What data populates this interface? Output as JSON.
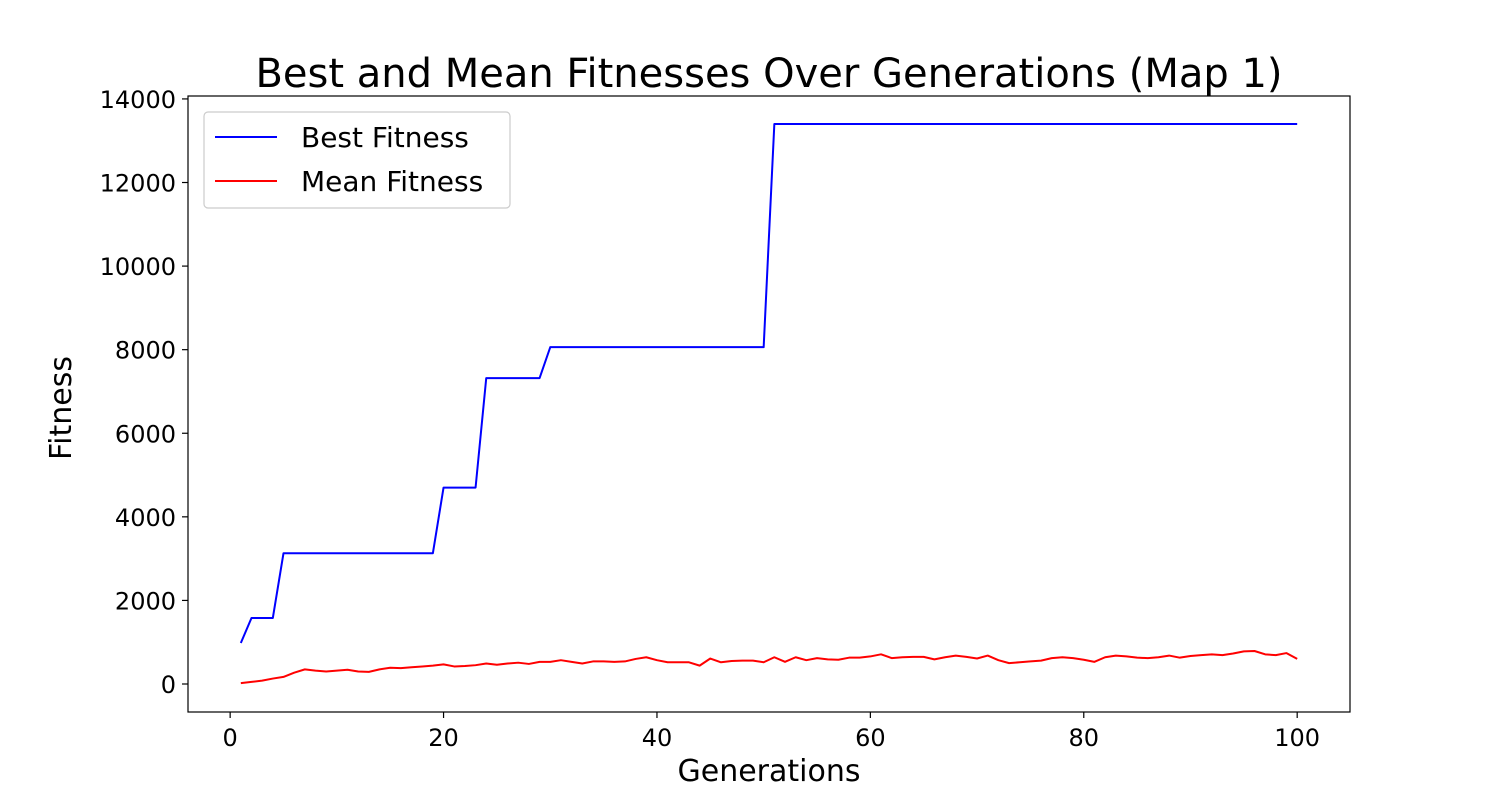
{
  "chart_data": {
    "type": "line",
    "title": "Best and Mean Fitnesses Over Generations (Map 1)",
    "xlabel": "Generations",
    "ylabel": "Fitness",
    "xlim": [
      -3.95,
      104.95
    ],
    "ylim": [
      -670,
      14070
    ],
    "xticks": [
      0,
      20,
      40,
      60,
      80,
      100
    ],
    "yticks": [
      0,
      2000,
      4000,
      6000,
      8000,
      10000,
      12000,
      14000
    ],
    "grid": false,
    "legend_position": "top-left",
    "x": [
      1,
      2,
      3,
      4,
      5,
      6,
      7,
      8,
      9,
      10,
      11,
      12,
      13,
      14,
      15,
      16,
      17,
      18,
      19,
      20,
      21,
      22,
      23,
      24,
      25,
      26,
      27,
      28,
      29,
      30,
      31,
      32,
      33,
      34,
      35,
      36,
      37,
      38,
      39,
      40,
      41,
      42,
      43,
      44,
      45,
      46,
      47,
      48,
      49,
      50,
      51,
      52,
      53,
      54,
      55,
      56,
      57,
      58,
      59,
      60,
      61,
      62,
      63,
      64,
      65,
      66,
      67,
      68,
      69,
      70,
      71,
      72,
      73,
      74,
      75,
      76,
      77,
      78,
      79,
      80,
      81,
      82,
      83,
      84,
      85,
      86,
      87,
      88,
      89,
      90,
      91,
      92,
      93,
      94,
      95,
      96,
      97,
      98,
      99,
      100
    ],
    "series": [
      {
        "name": "Best Fitness",
        "color": "#0000ff",
        "values": [
          980,
          1580,
          1580,
          1580,
          3130,
          3130,
          3130,
          3130,
          3130,
          3130,
          3130,
          3130,
          3130,
          3130,
          3130,
          3130,
          3130,
          3130,
          3130,
          4700,
          4700,
          4700,
          4700,
          7320,
          7320,
          7320,
          7320,
          7320,
          7320,
          8060,
          8060,
          8060,
          8060,
          8060,
          8060,
          8060,
          8060,
          8060,
          8060,
          8060,
          8060,
          8060,
          8060,
          8060,
          8060,
          8060,
          8060,
          8060,
          8060,
          8060,
          13400,
          13400,
          13400,
          13400,
          13400,
          13400,
          13400,
          13400,
          13400,
          13400,
          13400,
          13400,
          13400,
          13400,
          13400,
          13400,
          13400,
          13400,
          13400,
          13400,
          13400,
          13400,
          13400,
          13400,
          13400,
          13400,
          13400,
          13400,
          13400,
          13400,
          13400,
          13400,
          13400,
          13400,
          13400,
          13400,
          13400,
          13400,
          13400,
          13400,
          13400,
          13400,
          13400,
          13400,
          13400,
          13400,
          13400,
          13400,
          13400,
          13400
        ]
      },
      {
        "name": "Mean Fitness",
        "color": "#ff0000",
        "values": [
          20,
          50,
          80,
          130,
          170,
          270,
          350,
          320,
          300,
          320,
          340,
          300,
          290,
          350,
          390,
          380,
          400,
          420,
          440,
          470,
          420,
          430,
          450,
          490,
          460,
          490,
          510,
          480,
          530,
          530,
          570,
          530,
          490,
          540,
          540,
          530,
          540,
          600,
          640,
          570,
          520,
          520,
          520,
          440,
          610,
          520,
          550,
          560,
          560,
          520,
          640,
          530,
          640,
          570,
          620,
          590,
          580,
          630,
          630,
          660,
          710,
          620,
          640,
          650,
          650,
          590,
          640,
          680,
          650,
          610,
          680,
          570,
          500,
          520,
          540,
          560,
          620,
          640,
          620,
          580,
          530,
          640,
          680,
          660,
          630,
          620,
          640,
          680,
          630,
          670,
          690,
          710,
          690,
          730,
          780,
          790,
          710,
          690,
          740,
          600
        ]
      }
    ]
  }
}
